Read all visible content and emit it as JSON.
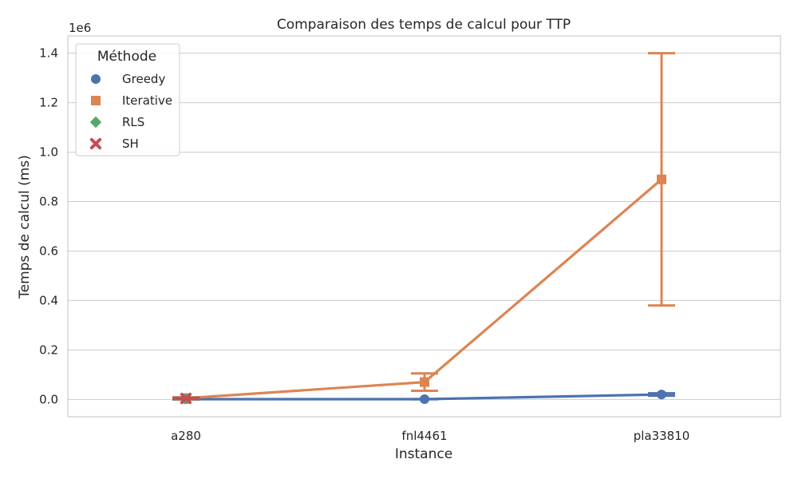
{
  "chart_data": {
    "type": "line",
    "title": "Comparaison des temps de calcul pour TTP",
    "xlabel": "Instance",
    "ylabel": "Temps de calcul (ms)",
    "y_exponent_label": "1e6",
    "categories": [
      "a280",
      "fnl4461",
      "pla33810"
    ],
    "ylim": [
      -70000,
      1470000
    ],
    "yticks": [
      0,
      200000,
      400000,
      600000,
      800000,
      1000000,
      1200000,
      1400000
    ],
    "ytick_labels": [
      "0.0",
      "0.2",
      "0.4",
      "0.6",
      "0.8",
      "1.0",
      "1.2",
      "1.4"
    ],
    "grid": true,
    "legend": {
      "title": "Méthode",
      "placement": "top-left"
    },
    "series": [
      {
        "name": "Greedy",
        "color": "#4c72b0",
        "marker": "circle",
        "values": [
          1000,
          1000,
          20000
        ],
        "err_low": [
          500,
          500,
          15000
        ],
        "err_high": [
          1500,
          1500,
          25000
        ]
      },
      {
        "name": "Iterative",
        "color": "#dd8452",
        "marker": "square",
        "values": [
          5000,
          70000,
          890000
        ],
        "err_low": [
          2000,
          35000,
          380000
        ],
        "err_high": [
          8000,
          105000,
          1400000
        ]
      },
      {
        "name": "RLS",
        "color": "#55a868",
        "marker": "diamond",
        "values": [
          3000,
          null,
          null
        ],
        "err_low": [
          0,
          null,
          null
        ],
        "err_high": [
          8000,
          null,
          null
        ]
      },
      {
        "name": "SH",
        "color": "#c44e52",
        "marker": "x",
        "values": [
          4000,
          null,
          null
        ],
        "err_low": [
          1000,
          null,
          null
        ],
        "err_high": [
          7000,
          null,
          null
        ]
      }
    ]
  }
}
